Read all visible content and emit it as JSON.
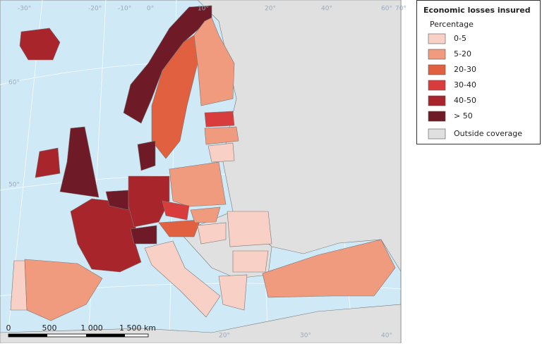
{
  "legend": {
    "title": "Economic losses insured",
    "subtitle": "Percentage",
    "items": [
      {
        "label": "0-5",
        "color": "#f8d0c5"
      },
      {
        "label": "5-20",
        "color": "#f09a7e"
      },
      {
        "label": "20-30",
        "color": "#e0603f"
      },
      {
        "label": "30-40",
        "color": "#d93c3c"
      },
      {
        "label": "40-50",
        "color": "#a8262b"
      },
      {
        "label": "> 50",
        "color": "#6e1b27"
      }
    ],
    "outside": {
      "label": "Outside coverage",
      "color": "#e0e0e0"
    }
  },
  "scale": {
    "labels": [
      "0",
      "500",
      "1 000",
      "1 500 km"
    ]
  },
  "graticule": {
    "top": [
      "-30°",
      "-20°",
      "-10°",
      "0°",
      "10°",
      "20°",
      "40°",
      "60°",
      "70°"
    ],
    "left": [
      "60°",
      "50°"
    ],
    "bottom": [
      "20°",
      "30°",
      "40°"
    ]
  }
}
